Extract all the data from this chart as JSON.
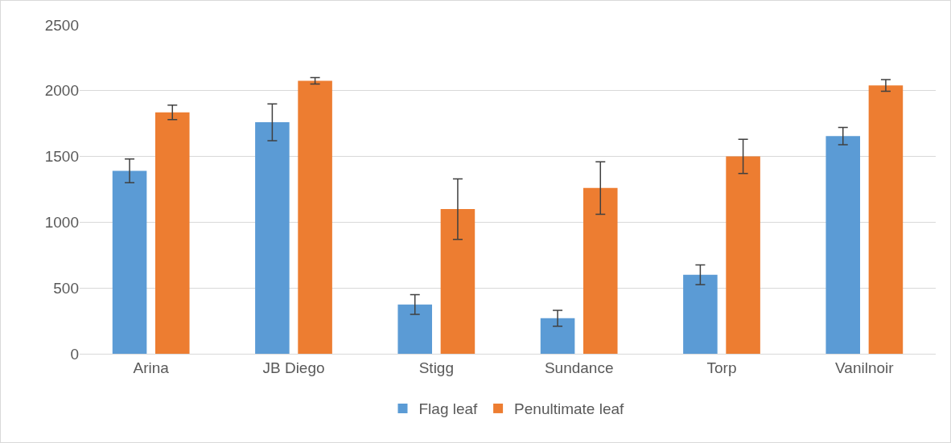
{
  "chart_data": {
    "type": "bar",
    "categories": [
      "Arina",
      "JB Diego",
      "Stigg",
      "Sundance",
      "Torp",
      "Vanilnoir"
    ],
    "series": [
      {
        "name": "Flag leaf",
        "color": "#5b9bd5",
        "values": [
          1390,
          1760,
          375,
          270,
          600,
          1655
        ],
        "errors": [
          90,
          140,
          75,
          60,
          75,
          65
        ]
      },
      {
        "name": "Penultimate leaf",
        "color": "#ed7d31",
        "values": [
          1835,
          2075,
          1100,
          1260,
          1500,
          2040
        ],
        "errors": [
          55,
          25,
          230,
          200,
          130,
          45
        ]
      }
    ],
    "ylim": [
      0,
      2500
    ],
    "yticks": [
      0,
      500,
      1000,
      1500,
      2000,
      2500
    ],
    "grid": "y",
    "legend": "bottom"
  }
}
